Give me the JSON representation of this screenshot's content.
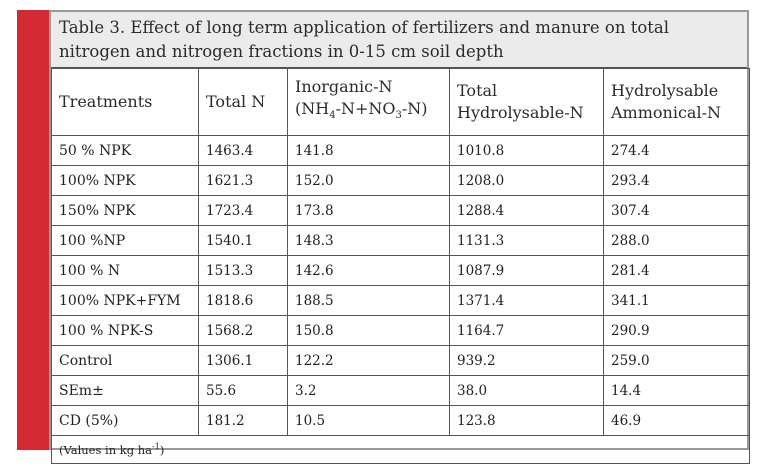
{
  "caption": "Table 3. Effect of long term application of fertilizers and manure on total nitrogen and nitrogen fractions in 0-15 cm soil depth",
  "headers": {
    "treatments": "Treatments",
    "total_n": "Total N",
    "inorganic_line1": "Inorganic-N",
    "inorganic_p1": "(NH",
    "inorganic_s1": "4",
    "inorganic_p2": "-N+NO",
    "inorganic_s2": "3",
    "inorganic_p3": "-N)",
    "total_hydro_line1": "Total",
    "total_hydro_line2": "Hydrolysable-N",
    "hydro_amm_line1": "Hydrolysable",
    "hydro_amm_line2": "Ammonical-N"
  },
  "rows": [
    {
      "treatment": "50 % NPK",
      "total_n": "1463.4",
      "inorganic_n": "141.8",
      "total_hydrolysable_n": "1010.8",
      "hydrolysable_ammonical_n": "274.4"
    },
    {
      "treatment": "100% NPK",
      "total_n": "1621.3",
      "inorganic_n": "152.0",
      "total_hydrolysable_n": "1208.0",
      "hydrolysable_ammonical_n": "293.4"
    },
    {
      "treatment": "150% NPK",
      "total_n": "1723.4",
      "inorganic_n": "173.8",
      "total_hydrolysable_n": "1288.4",
      "hydrolysable_ammonical_n": "307.4"
    },
    {
      "treatment": "100 %NP",
      "total_n": "1540.1",
      "inorganic_n": "148.3",
      "total_hydrolysable_n": "1131.3",
      "hydrolysable_ammonical_n": "288.0"
    },
    {
      "treatment": "100 % N",
      "total_n": "1513.3",
      "inorganic_n": "142.6",
      "total_hydrolysable_n": "1087.9",
      "hydrolysable_ammonical_n": "281.4"
    },
    {
      "treatment": "100% NPK+FYM",
      "total_n": "1818.6",
      "inorganic_n": "188.5",
      "total_hydrolysable_n": "1371.4",
      "hydrolysable_ammonical_n": "341.1"
    },
    {
      "treatment": "100 % NPK-S",
      "total_n": "1568.2",
      "inorganic_n": "150.8",
      "total_hydrolysable_n": "1164.7",
      "hydrolysable_ammonical_n": "290.9"
    },
    {
      "treatment": "Control",
      "total_n": "1306.1",
      "inorganic_n": "122.2",
      "total_hydrolysable_n": "939.2",
      "hydrolysable_ammonical_n": "259.0"
    },
    {
      "treatment": "SEm±",
      "total_n": "55.6",
      "inorganic_n": "3.2",
      "total_hydrolysable_n": "38.0",
      "hydrolysable_ammonical_n": "14.4"
    },
    {
      "treatment": "CD (5%)",
      "total_n": "181.2",
      "inorganic_n": "10.5",
      "total_hydrolysable_n": "123.8",
      "hydrolysable_ammonical_n": "46.9"
    }
  ],
  "footnote": {
    "prefix": "(Values in kg ha",
    "exp": "-1",
    "suffix": ")"
  },
  "colors": {
    "accent_bar": "#d42a33",
    "caption_bg": "#ebebeb",
    "border": "#555555"
  }
}
